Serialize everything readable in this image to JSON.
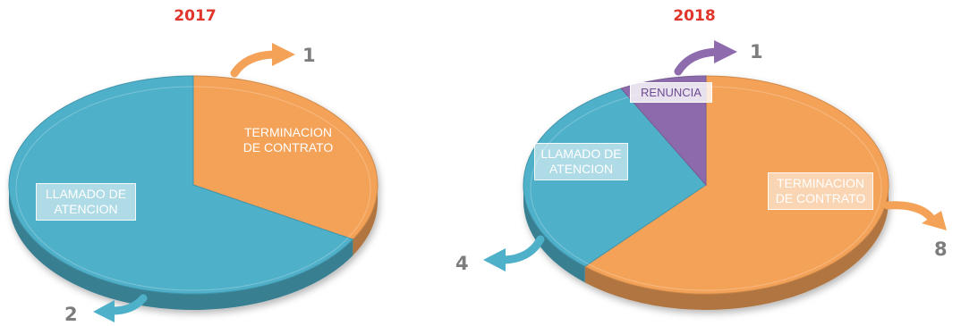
{
  "colors": {
    "llamado": "#4fb0c9",
    "terminacion": "#f4a258",
    "renuncia": "#8d6bac",
    "title": "#e0352b",
    "value_text": "#7d7d7d"
  },
  "chart_data": [
    {
      "type": "pie",
      "title": "2017",
      "slices": [
        {
          "label": "TERMINACION DE CONTRATO",
          "value": 1,
          "color": "#f4a258"
        },
        {
          "label": "LLAMADO DE ATENCION",
          "value": 2,
          "color": "#4fb0c9"
        }
      ]
    },
    {
      "type": "pie",
      "title": "2018",
      "slices": [
        {
          "label": "TERMINACION DE CONTRATO",
          "value": 8,
          "color": "#f4a258"
        },
        {
          "label": "LLAMADO DE ATENCION",
          "value": 4,
          "color": "#4fb0c9"
        },
        {
          "label": "RENUNCIA",
          "value": 1,
          "color": "#8d6bac"
        }
      ]
    }
  ]
}
